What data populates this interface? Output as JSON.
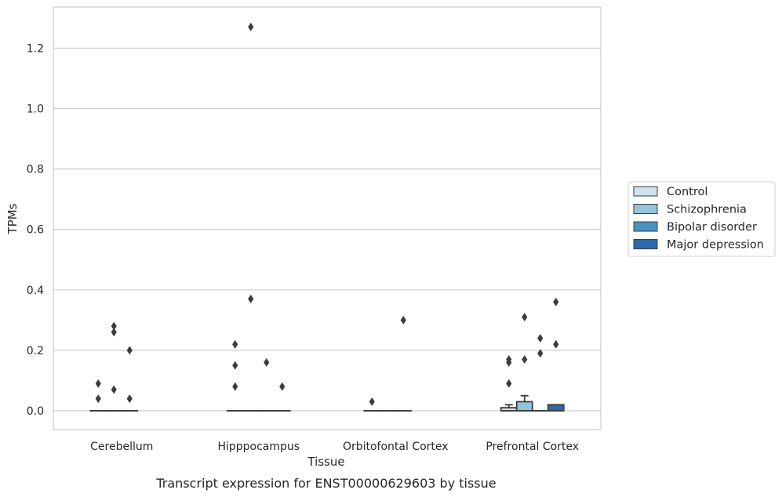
{
  "chart_data": {
    "type": "box",
    "xlabel": "Tissue",
    "ylabel": "TPMs",
    "caption": "Transcript expression for ENST00000629603 by tissue",
    "ylim": [
      -0.062,
      1.335
    ],
    "yticks": [
      "0.0",
      "0.2",
      "0.4",
      "0.6",
      "0.8",
      "1.0",
      "1.2"
    ],
    "grid": "horizontal",
    "legend_position": "right",
    "categories": [
      "Cerebellum",
      "Hipppocampus",
      "Orbitofontal Cortex",
      "Prefrontal Cortex"
    ],
    "series": [
      {
        "name": "Control",
        "color": "#d0e1f1",
        "boxes": [
          {
            "q1": 0,
            "median": 0,
            "q3": 0,
            "whisker_low": 0,
            "whisker_high": 0,
            "outliers": [
              0.04,
              0.09
            ]
          },
          {
            "q1": 0,
            "median": 0,
            "q3": 0,
            "whisker_low": 0,
            "whisker_high": 0,
            "outliers": [
              0.08,
              0.15,
              0.22
            ]
          },
          {
            "q1": 0,
            "median": 0,
            "q3": 0,
            "whisker_low": 0,
            "whisker_high": 0,
            "outliers": [
              0.03
            ]
          },
          {
            "q1": 0,
            "median": 0,
            "q3": 0.01,
            "whisker_low": 0,
            "whisker_high": 0.02,
            "outliers": [
              0.09,
              0.16,
              0.17
            ]
          }
        ]
      },
      {
        "name": "Schizophrenia",
        "color": "#92c4de",
        "boxes": [
          {
            "q1": 0,
            "median": 0,
            "q3": 0,
            "whisker_low": 0,
            "whisker_high": 0,
            "outliers": [
              0.07,
              0.26,
              0.28
            ]
          },
          {
            "q1": 0,
            "median": 0,
            "q3": 0,
            "whisker_low": 0,
            "whisker_high": 0,
            "outliers": [
              0.37,
              1.27
            ]
          },
          {
            "q1": 0,
            "median": 0,
            "q3": 0,
            "whisker_low": 0,
            "whisker_high": 0,
            "outliers": []
          },
          {
            "q1": 0,
            "median": 0,
            "q3": 0.03,
            "whisker_low": 0,
            "whisker_high": 0.05,
            "outliers": [
              0.17,
              0.31
            ]
          }
        ]
      },
      {
        "name": "Bipolar disorder",
        "color": "#4b91c2",
        "boxes": [
          {
            "q1": 0,
            "median": 0,
            "q3": 0,
            "whisker_low": 0,
            "whisker_high": 0,
            "outliers": [
              0.04,
              0.2
            ]
          },
          {
            "q1": 0,
            "median": 0,
            "q3": 0,
            "whisker_low": 0,
            "whisker_high": 0,
            "outliers": [
              0.16
            ]
          },
          {
            "q1": 0,
            "median": 0,
            "q3": 0,
            "whisker_low": 0,
            "whisker_high": 0,
            "outliers": [
              0.3
            ]
          },
          {
            "q1": 0,
            "median": 0,
            "q3": 0,
            "whisker_low": 0,
            "whisker_high": 0,
            "outliers": [
              0.19,
              0.24
            ]
          }
        ]
      },
      {
        "name": "Major depression",
        "color": "#2d6aa8",
        "boxes": [
          null,
          {
            "q1": 0,
            "median": 0,
            "q3": 0,
            "whisker_low": 0,
            "whisker_high": 0,
            "outliers": [
              0.08
            ]
          },
          null,
          {
            "q1": 0,
            "median": 0,
            "q3": 0.02,
            "whisker_low": 0,
            "whisker_high": 0.02,
            "outliers": [
              0.22,
              0.36
            ]
          }
        ]
      }
    ]
  }
}
